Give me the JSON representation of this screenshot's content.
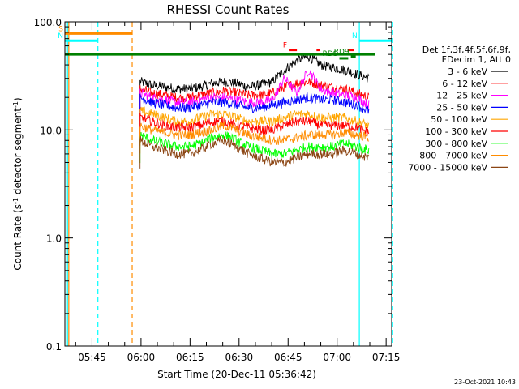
{
  "chart_data": {
    "type": "line",
    "title": "RHESSI Count Rates",
    "xlabel": "Start Time (20-Dec-11 05:36:42)",
    "ylabel": "Count Rate (s⁻¹ detector segment⁻¹)",
    "ylabel_main": "Count Rate (s",
    "ylabel_sup1": "-1",
    "ylabel_mid": " detector segment",
    "ylabel_sup2": "-1",
    "ylabel_end": ")",
    "yscale": "log",
    "ylim": [
      0.1,
      100.0
    ],
    "xlim_minutes_after_start": [
      0,
      100
    ],
    "x_unit": "minutes after 05:36:42 UT",
    "y_ticks": [
      {
        "value": 100.0,
        "label": "100.0"
      },
      {
        "value": 10.0,
        "label": "10.0"
      },
      {
        "value": 1.0,
        "label": "1.0"
      },
      {
        "value": 0.1,
        "label": "0.1"
      }
    ],
    "x_ticks": [
      {
        "minutes": 8.3,
        "label": "05:45"
      },
      {
        "minutes": 23.3,
        "label": "06:00"
      },
      {
        "minutes": 38.3,
        "label": "06:15"
      },
      {
        "minutes": 53.3,
        "label": "06:30"
      },
      {
        "minutes": 68.3,
        "label": "06:45"
      },
      {
        "minutes": 83.3,
        "label": "07:00"
      },
      {
        "minutes": 98.3,
        "label": "07:15"
      }
    ],
    "legend_position": "right",
    "legend_header": [
      "Det 1f,3f,4f,5f,6f,9f,",
      "FDecim 1, Att 0"
    ],
    "data_start_minutes": 23.0,
    "data_end_minutes": 93.0,
    "series": [
      {
        "name": "3 - 6 keV",
        "color": "#000000",
        "values": [
          28,
          26,
          25,
          24,
          24,
          25,
          27,
          28,
          27,
          25,
          26,
          28,
          36,
          44,
          48,
          40,
          38,
          36,
          33,
          30
        ]
      },
      {
        "name": "6 - 12 keV",
        "color": "#ff0000",
        "values": [
          24,
          22,
          21,
          20,
          20,
          21,
          22,
          23,
          22,
          21,
          21,
          22,
          25,
          27,
          28,
          26,
          25,
          24,
          22,
          20
        ]
      },
      {
        "name": "12 - 25 keV",
        "color": "#ff00ff",
        "values": [
          22,
          20,
          19,
          18,
          18,
          19,
          20,
          20,
          19,
          18,
          18,
          19,
          30,
          22,
          36,
          24,
          22,
          21,
          20,
          17
        ]
      },
      {
        "name": "25 - 50 keV",
        "color": "#0000ff",
        "values": [
          20,
          18,
          17,
          16,
          16,
          17,
          18,
          18,
          17,
          16,
          16,
          17,
          18,
          19,
          20,
          19,
          19,
          18,
          17,
          15
        ]
      },
      {
        "name": "50 - 100 keV",
        "color": "#ffa500",
        "values": [
          15,
          14,
          13,
          12,
          12,
          13,
          14,
          14,
          13,
          12,
          12,
          12,
          13,
          14,
          14,
          13,
          13,
          13,
          12,
          11
        ]
      },
      {
        "name": "100 - 300 keV",
        "color": "#ff0000",
        "values": [
          13,
          12,
          11,
          10.5,
          10.5,
          11,
          12,
          12,
          11,
          10.5,
          10,
          10,
          11,
          12,
          12,
          11,
          11,
          11,
          10.5,
          9.5
        ]
      },
      {
        "name": "300 - 800 keV",
        "color": "#00ff00",
        "values": [
          9,
          8,
          7.5,
          7,
          7,
          7.5,
          8.5,
          9,
          8,
          7,
          6.5,
          6,
          6,
          6.5,
          7,
          7,
          7,
          7.5,
          7,
          6.5
        ]
      },
      {
        "name": "800 - 7000 keV",
        "color": "#ff8c00",
        "values": [
          11,
          10,
          9.5,
          9,
          9,
          9.5,
          10,
          11,
          10,
          9,
          8.5,
          8,
          8,
          8.5,
          9,
          9,
          9,
          9.5,
          9,
          8.5
        ]
      },
      {
        "name": "7000 - 15000 keV",
        "color": "#8b4513",
        "values": [
          8,
          7,
          6.5,
          6,
          6,
          6.5,
          7.5,
          8,
          7,
          6,
          5.5,
          5,
          5,
          5.5,
          6,
          6,
          6,
          6.5,
          6,
          5.5
        ]
      }
    ],
    "reference_line": {
      "value": 50,
      "color": "#008000"
    },
    "annotations": [
      {
        "label": "S",
        "color": "#ff8c00",
        "minutes_range": [
          0,
          20.6
        ],
        "value": 78
      },
      {
        "label": "N",
        "color": "#00ffff",
        "minutes_range": [
          0,
          10
        ],
        "value": 67
      },
      {
        "label": "N",
        "color": "#00ffff",
        "minutes_range": [
          90,
          100
        ],
        "value": 67
      },
      {
        "label": "F",
        "color": "#ff0000",
        "minutes_range": [
          68.5,
          71
        ],
        "value": 55
      },
      {
        "label": "",
        "color": "#ff0000",
        "minutes_range": [
          77,
          78
        ],
        "value": 55
      },
      {
        "label": "",
        "color": "#ff0000",
        "minutes_range": [
          86.5,
          88.5
        ],
        "value": 55
      },
      {
        "label": "RDS",
        "color": "#008000",
        "minutes_range": [
          84,
          86.7
        ],
        "value": 46
      },
      {
        "label": "RD9",
        "color": "#008000",
        "minutes_range": [
          87.5,
          89
        ],
        "value": 48
      }
    ],
    "vertical_markers": [
      {
        "minutes": 0.8,
        "color": "#00ffff",
        "style": "solid"
      },
      {
        "minutes": 1.2,
        "color": "#ff8c00",
        "style": "solid"
      },
      {
        "minutes": 10.1,
        "color": "#00ffff",
        "style": "dashed"
      },
      {
        "minutes": 20.6,
        "color": "#ff8c00",
        "style": "dashed"
      },
      {
        "minutes": 90.1,
        "color": "#00ffff",
        "style": "solid"
      },
      {
        "minutes": 100.3,
        "color": "#00ffff",
        "style": "dashed"
      }
    ]
  },
  "stamp": "23-Oct-2021 10:43"
}
